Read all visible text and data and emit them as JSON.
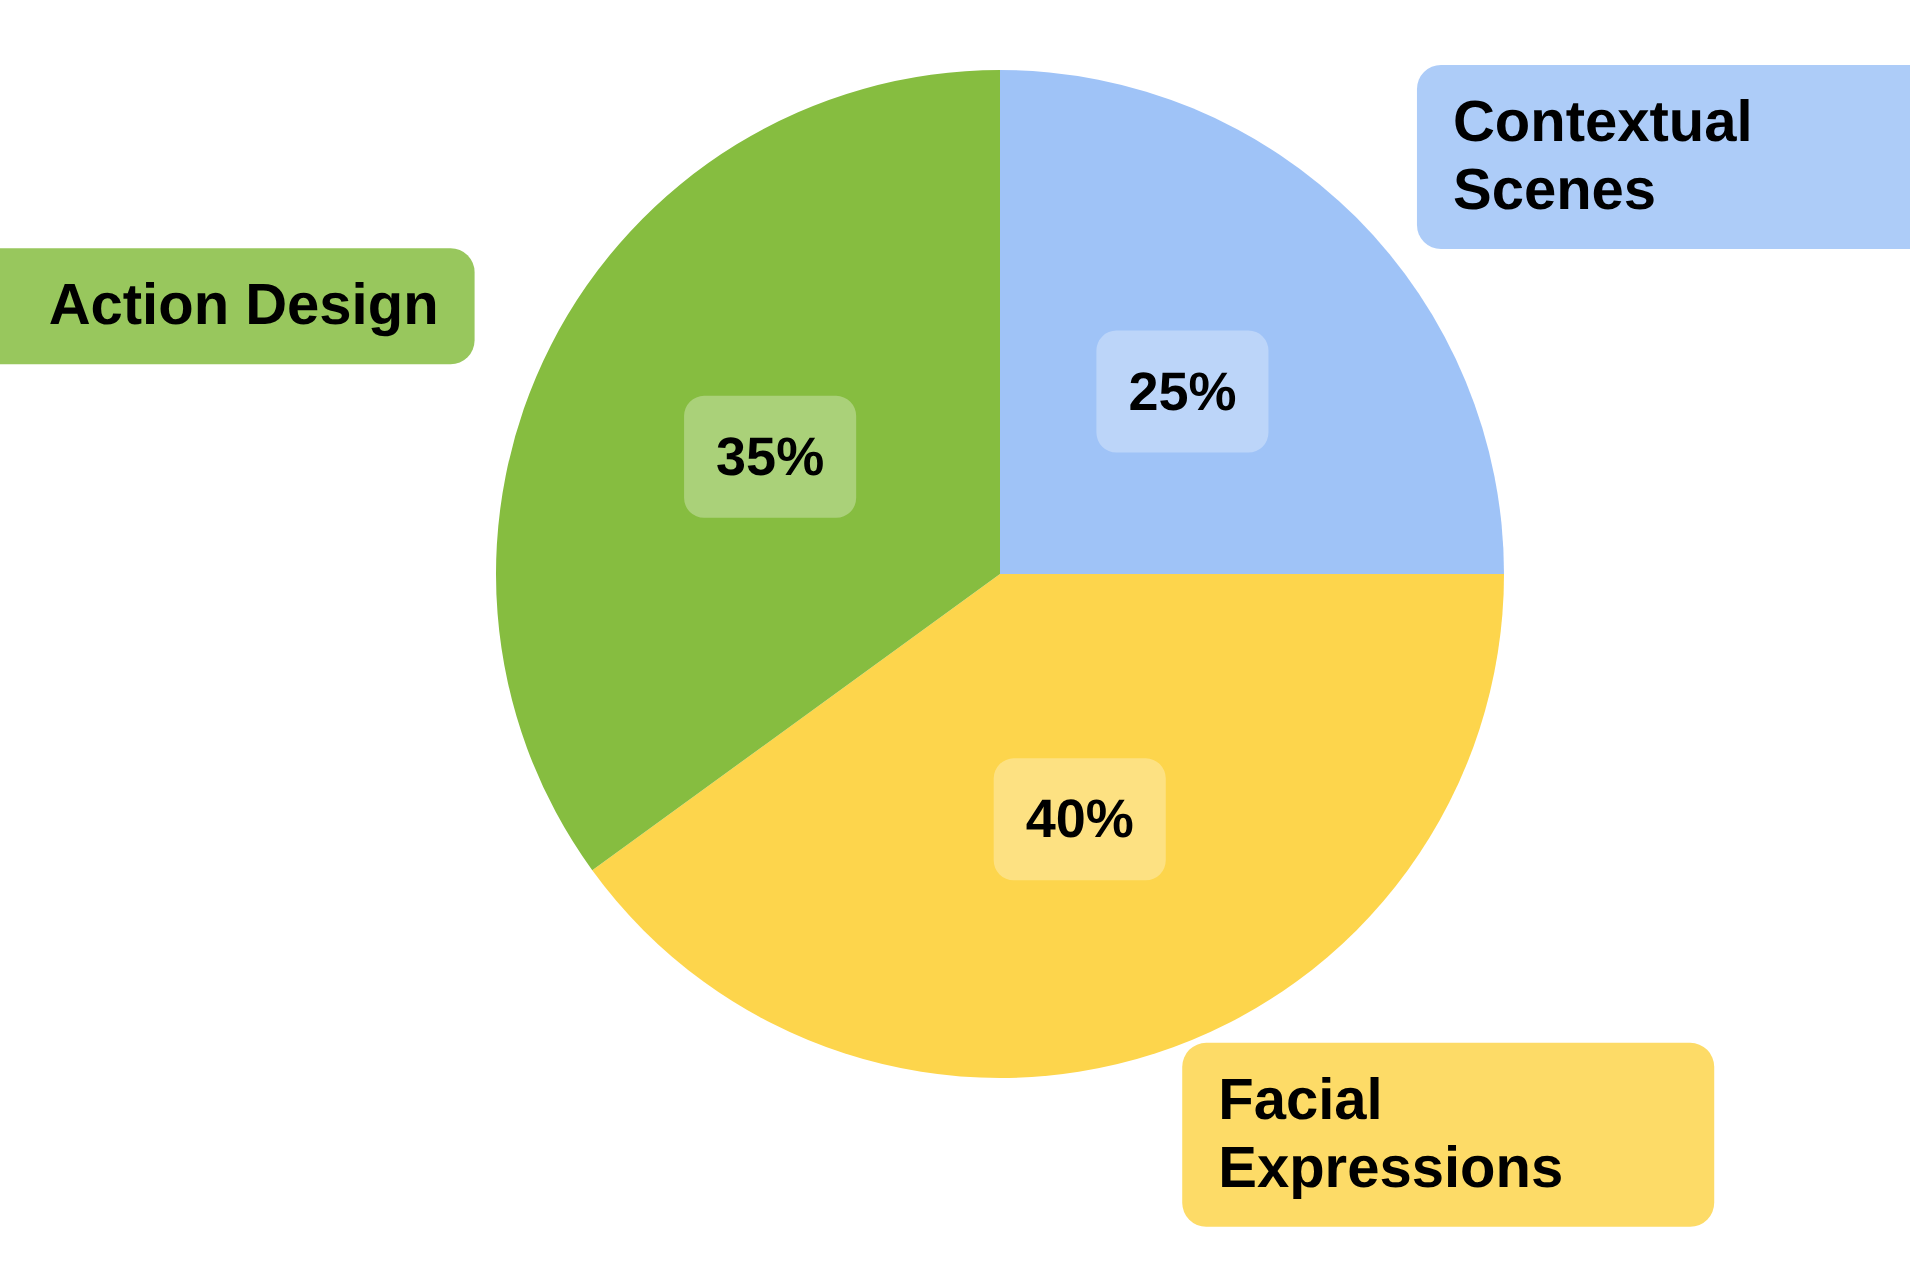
{
  "chart_data": {
    "type": "pie",
    "categories": [
      "Contextual Scenes",
      "Facial Expressions",
      "Action Design"
    ],
    "values": [
      25,
      40,
      35
    ],
    "value_labels": [
      "25%",
      "40%",
      "35%"
    ],
    "colors": [
      "#9fc3f7",
      "#fdd54c",
      "#86bd40"
    ],
    "legend": false
  }
}
